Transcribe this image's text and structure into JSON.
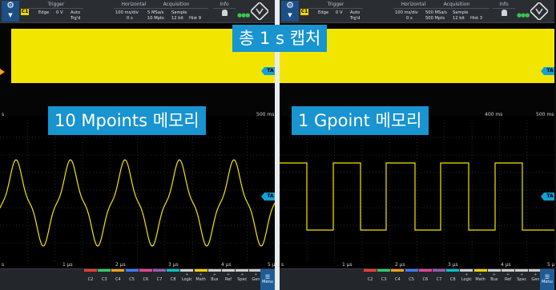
{
  "overlays": {
    "capture_label": "총 1 s 캡처",
    "left_label": "10 Mpoints 메모리",
    "right_label": "1 Gpoint 메모리"
  },
  "panels": [
    {
      "id": "left",
      "toolbar": {
        "channel": "C1",
        "trigger": {
          "header": "Trigger",
          "type": "Edge",
          "level": "0 V",
          "mode": "Auto",
          "mode_sub": "Trg'd"
        },
        "horizontal": {
          "header": "Horizontal",
          "scale": "100 ms/div",
          "position": "0 s"
        },
        "acquisition": {
          "header": "Acquisition",
          "rate": "5 MSa/s",
          "points": "10 Mpts",
          "mode": "Sample",
          "bits": "12 bit",
          "hist": "Hist 9"
        },
        "info": {
          "header": "Info"
        }
      },
      "upper_axis": {
        "left": "s",
        "right": "500 ms"
      },
      "lower_axis": [
        "s",
        "1 µs",
        "2 µs",
        "3 µs",
        "4 µs",
        "5 µs"
      ],
      "ta_label": "TA",
      "waveform": "sine"
    },
    {
      "id": "right",
      "toolbar": {
        "channel": "C1",
        "trigger": {
          "header": "Trigger",
          "type": "Edge",
          "level": "0 V",
          "mode": "Auto",
          "mode_sub": "Trg'd"
        },
        "horizontal": {
          "header": "Horizontal",
          "scale": "100 ms/div",
          "position": "0 s"
        },
        "acquisition": {
          "header": "Acquisition",
          "rate": "500 MSa/s",
          "points": "500 Mpts",
          "mode": "Sample",
          "bits": "12 bit",
          "hist": "Hist 3"
        },
        "info": {
          "header": "Info"
        }
      },
      "upper_axis": {
        "left": "",
        "mid": "400 ms",
        "right": "500 ms"
      },
      "lower_axis": [
        "s",
        "1 µs",
        "2 µs",
        "3 µs",
        "4 µs",
        "5 µs"
      ],
      "ta_label": "TA",
      "waveform": "square"
    }
  ],
  "bottom_bar": {
    "items": [
      "C2",
      "C3",
      "C4",
      "C5",
      "C6",
      "C7",
      "C8",
      "Logic",
      "Math",
      "Bus",
      "Ref",
      "Spec",
      "Gen"
    ],
    "menu_label": "Menu",
    "colors": [
      "#ff3b30",
      "#2ecc71",
      "#ff9e1b",
      "#3d7bff",
      "#e84393",
      "#9b59b6",
      "#00c4c4",
      "#cccccc",
      "#f5d300",
      "#cccccc",
      "#cccccc",
      "#cccccc",
      "#cccccc"
    ]
  },
  "colors": {
    "trace": "#f2e600",
    "accent": "#1894d0",
    "trace_marker": "#ff9e1b"
  }
}
